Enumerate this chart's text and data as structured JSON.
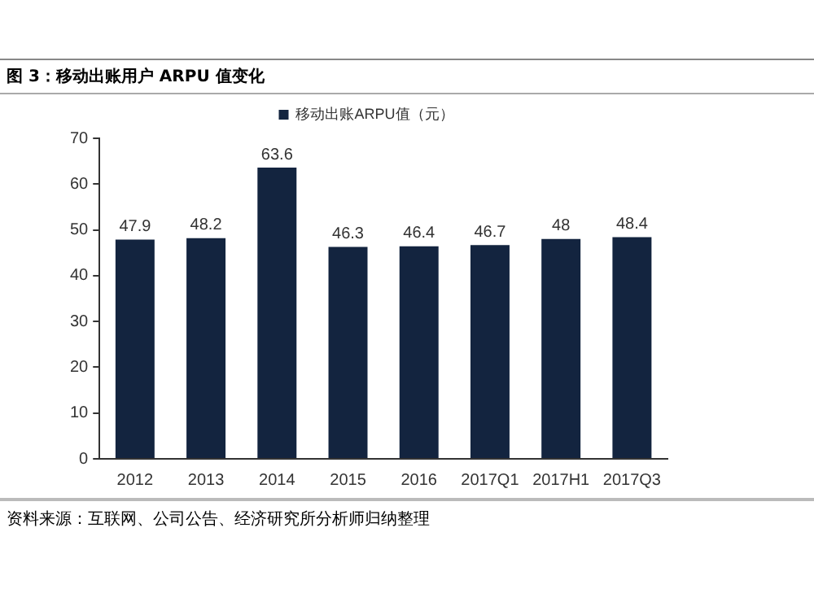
{
  "chart_data": {
    "type": "bar",
    "title": "图 3：移动出账用户 ARPU 值变化",
    "categories": [
      "2012",
      "2013",
      "2014",
      "2015",
      "2016",
      "2017Q1",
      "2017H1",
      "2017Q3"
    ],
    "series": [
      {
        "name": "移动出账ARPU值（元）",
        "color": "#13243f",
        "values": [
          47.9,
          48.2,
          63.6,
          46.3,
          46.4,
          46.7,
          48,
          48.4
        ]
      }
    ],
    "ylim": [
      0,
      70
    ],
    "yticks": [
      0,
      10,
      20,
      30,
      40,
      50,
      60,
      70
    ],
    "grid": false,
    "legend": "top",
    "data_labels": true,
    "annotations": [
      "资料来源：互联网、公司公告、经济研究所分析师归纳整理"
    ]
  }
}
